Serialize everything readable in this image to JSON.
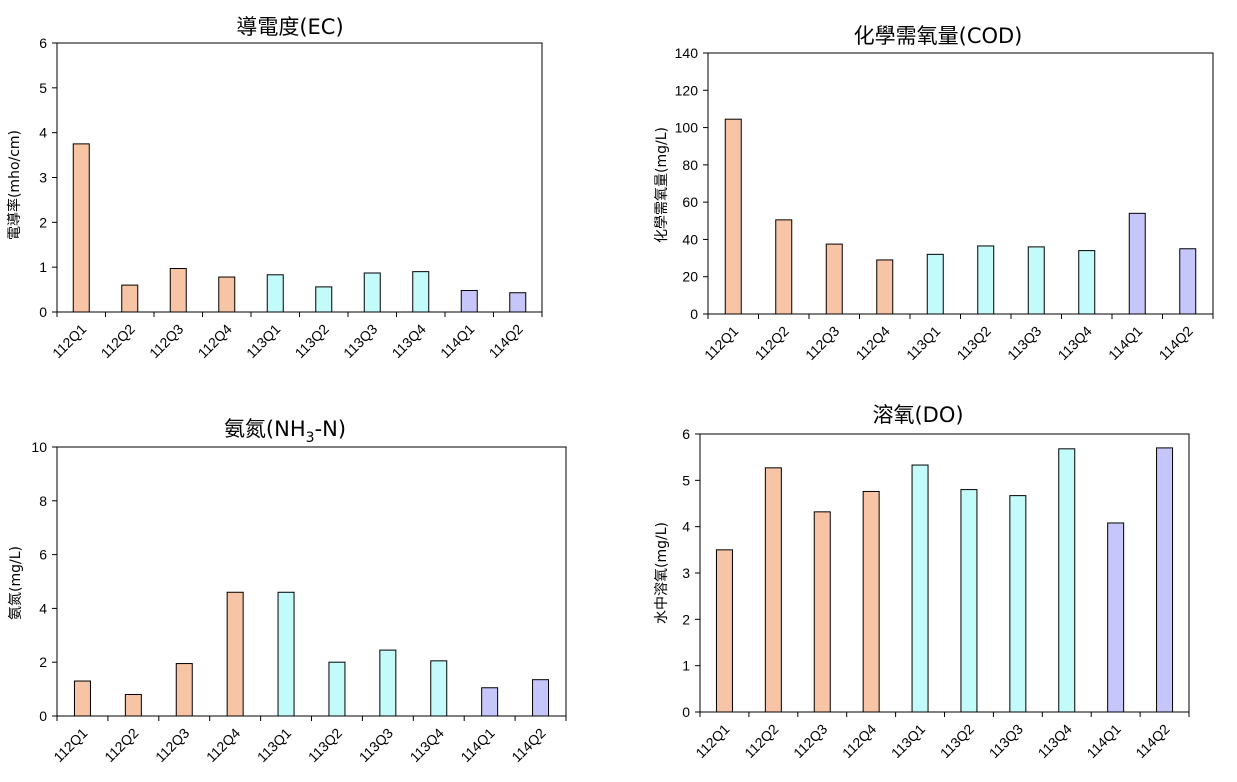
{
  "chart_data": [
    {
      "type": "bar",
      "title": "導電度(EC)",
      "xlabel": "",
      "ylabel": "電導率(mho/cm)",
      "ylim": [
        0,
        6
      ],
      "yticks": [
        0,
        1,
        2,
        3,
        4,
        5,
        6
      ],
      "grid": false,
      "categories": [
        "112Q1",
        "112Q2",
        "112Q3",
        "112Q4",
        "113Q1",
        "113Q2",
        "113Q3",
        "113Q4",
        "114Q1",
        "114Q2"
      ],
      "values": [
        3.75,
        0.6,
        0.97,
        0.78,
        0.83,
        0.56,
        0.87,
        0.9,
        0.48,
        0.43
      ],
      "colors": [
        "#f7c4a5",
        "#f7c4a5",
        "#f7c4a5",
        "#f7c4a5",
        "#c3fbfb",
        "#c3fbfb",
        "#c3fbfb",
        "#c3fbfb",
        "#c6c6fb",
        "#c6c6fb"
      ]
    },
    {
      "type": "bar",
      "title": "化學需氧量(COD)",
      "xlabel": "",
      "ylabel": "化學需氧量(mg/L)",
      "ylim": [
        0,
        140
      ],
      "yticks": [
        0,
        20,
        40,
        60,
        80,
        100,
        120,
        140
      ],
      "grid": false,
      "categories": [
        "112Q1",
        "112Q2",
        "112Q3",
        "112Q4",
        "113Q1",
        "113Q2",
        "113Q3",
        "113Q4",
        "114Q1",
        "114Q2"
      ],
      "values": [
        104.5,
        50.5,
        37.5,
        29,
        32,
        36.5,
        36,
        34,
        54,
        35
      ],
      "colors": [
        "#f7c4a5",
        "#f7c4a5",
        "#f7c4a5",
        "#f7c4a5",
        "#c3fbfb",
        "#c3fbfb",
        "#c3fbfb",
        "#c3fbfb",
        "#c6c6fb",
        "#c6c6fb"
      ]
    },
    {
      "type": "bar",
      "title": "氨氮(NH3-N)",
      "title_parts": {
        "main": "氨氮(NH",
        "sub": "3",
        "rest": "-N)"
      },
      "xlabel": "",
      "ylabel": "氨氮(mg/L)",
      "ylim": [
        0,
        10
      ],
      "yticks": [
        0,
        2,
        4,
        6,
        8,
        10
      ],
      "grid": false,
      "categories": [
        "112Q1",
        "112Q2",
        "112Q3",
        "112Q4",
        "113Q1",
        "113Q2",
        "113Q3",
        "113Q4",
        "114Q1",
        "114Q2"
      ],
      "values": [
        1.3,
        0.8,
        1.95,
        4.6,
        4.6,
        2.0,
        2.45,
        2.05,
        1.05,
        1.35
      ],
      "colors": [
        "#f7c4a5",
        "#f7c4a5",
        "#f7c4a5",
        "#f7c4a5",
        "#c3fbfb",
        "#c3fbfb",
        "#c3fbfb",
        "#c3fbfb",
        "#c6c6fb",
        "#c6c6fb"
      ]
    },
    {
      "type": "bar",
      "title": "溶氧(DO)",
      "xlabel": "",
      "ylabel": "水中溶氧(mg/L)",
      "ylim": [
        0,
        6
      ],
      "yticks": [
        0,
        1,
        2,
        3,
        4,
        5,
        6
      ],
      "grid": false,
      "categories": [
        "112Q1",
        "112Q2",
        "112Q3",
        "112Q4",
        "113Q1",
        "113Q2",
        "113Q3",
        "113Q4",
        "114Q1",
        "114Q2"
      ],
      "values": [
        3.5,
        5.27,
        4.32,
        4.76,
        5.33,
        4.8,
        4.67,
        5.68,
        4.08,
        5.7
      ],
      "colors": [
        "#f7c4a5",
        "#f7c4a5",
        "#f7c4a5",
        "#f7c4a5",
        "#c3fbfb",
        "#c3fbfb",
        "#c3fbfb",
        "#c3fbfb",
        "#c6c6fb",
        "#c6c6fb"
      ]
    }
  ]
}
